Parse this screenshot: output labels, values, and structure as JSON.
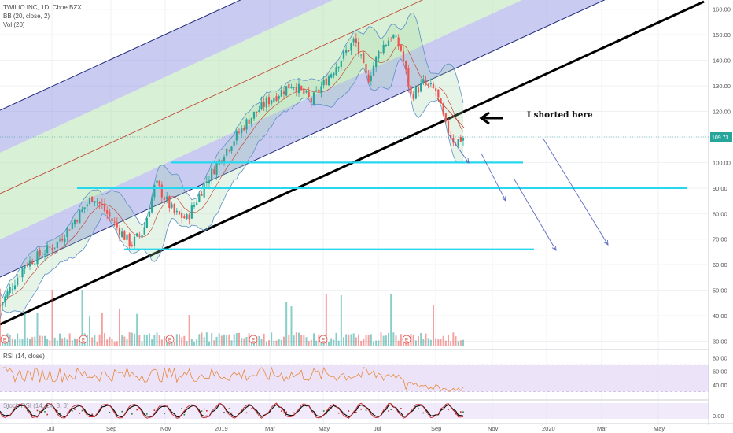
{
  "header": {
    "symbol": "TWILIO INC, 1D, Cboe BZX",
    "bb": "BB (20, close, 2)",
    "vol": "Vol (20)",
    "rsi": "RSI (14, close)",
    "stoch": "Stoch RSI (14, 14, 3, 3)"
  },
  "annotation": {
    "text": "I shorted here"
  },
  "colors": {
    "up": "#26a69a",
    "down": "#ef5350",
    "channel_outer": "#9fa0e6",
    "channel_inner": "#b8e3b2",
    "support": "#26d7ee",
    "trendline": "#000000",
    "bb": "#5b8fc7",
    "rsi": "#e8883a",
    "price_tag": "#26a69a"
  },
  "chart_data": {
    "type": "candlestick",
    "price_axis": {
      "ylim": [
        28,
        163
      ],
      "ticks": [
        30,
        40,
        50,
        60,
        70,
        80,
        90,
        100,
        110,
        120,
        130,
        140,
        150,
        160
      ],
      "labels": [
        "30.00",
        "40.00",
        "50.00",
        "60.00",
        "70.00",
        "80.00",
        "90.00",
        "100.00",
        "110.00",
        "120.00",
        "130.00",
        "140.00",
        "150.00",
        "160.00"
      ]
    },
    "last_price": "109.73",
    "time_axis": {
      "labels": [
        "Jul",
        "Sep",
        "Nov",
        "2019",
        "Mar",
        "May",
        "Jul",
        "Sep",
        "Nov",
        "2020",
        "Mar",
        "May"
      ]
    },
    "support_levels": [
      100,
      90,
      66
    ],
    "price_path": [
      {
        "d": 0,
        "p": 44
      },
      {
        "d": 20,
        "p": 60
      },
      {
        "d": 45,
        "p": 68
      },
      {
        "d": 75,
        "p": 87
      },
      {
        "d": 95,
        "p": 74
      },
      {
        "d": 105,
        "p": 68
      },
      {
        "d": 115,
        "p": 73
      },
      {
        "d": 125,
        "p": 92
      },
      {
        "d": 140,
        "p": 80
      },
      {
        "d": 150,
        "p": 78
      },
      {
        "d": 165,
        "p": 92
      },
      {
        "d": 180,
        "p": 104
      },
      {
        "d": 200,
        "p": 117
      },
      {
        "d": 215,
        "p": 124
      },
      {
        "d": 235,
        "p": 131
      },
      {
        "d": 250,
        "p": 124
      },
      {
        "d": 270,
        "p": 138
      },
      {
        "d": 285,
        "p": 148
      },
      {
        "d": 295,
        "p": 132
      },
      {
        "d": 305,
        "p": 144
      },
      {
        "d": 315,
        "p": 150
      },
      {
        "d": 322,
        "p": 144
      },
      {
        "d": 330,
        "p": 126
      },
      {
        "d": 340,
        "p": 131
      },
      {
        "d": 350,
        "p": 128
      },
      {
        "d": 358,
        "p": 114
      },
      {
        "d": 365,
        "p": 108
      },
      {
        "d": 372,
        "p": 109.73
      }
    ],
    "earnings_markers": [
      "E",
      "E",
      "E",
      "E",
      "E",
      "E"
    ],
    "rsi_axis": {
      "ticks": [
        40,
        60,
        80
      ],
      "labels": [
        "40.00",
        "60.00",
        "80.00"
      ]
    },
    "stoch_axis": {
      "ticks": [
        0
      ],
      "labels": [
        "0.00"
      ]
    },
    "grid": true
  }
}
